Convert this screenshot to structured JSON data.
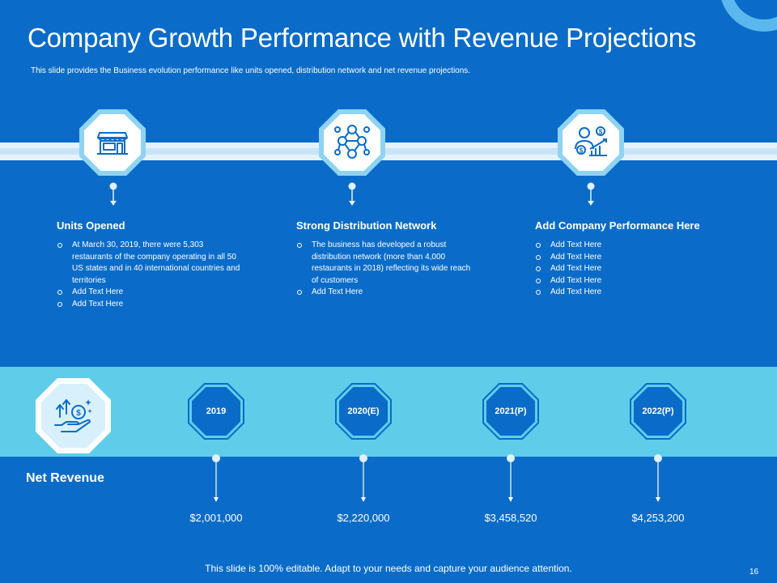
{
  "slide": {
    "title": "Company Growth Performance with Revenue Projections",
    "subtitle": "This slide provides the Business evolution performance like units opened, distribution  network and net revenue projections.",
    "footer": "This slide is 100% editable. Adapt to your needs and capture your audience attention.",
    "page_number": "16"
  },
  "sections": [
    {
      "icon": "storefront-icon",
      "title": "Units Opened",
      "bullets": [
        "At March 30, 2019, there were 5,303 restaurants of the company operating in all 50 US states and in 40 international countries and territories",
        "Add Text Here",
        "Add Text Here"
      ]
    },
    {
      "icon": "network-people-icon",
      "title": "Strong Distribution Network",
      "bullets": [
        "The business has developed a robust distribution  network (more than 4,000 restaurants in 2018) reflecting its wide reach of customers",
        "Add Text Here"
      ]
    },
    {
      "icon": "performance-growth-icon",
      "title": "Add Company Performance Here",
      "bullets": [
        "Add Text Here",
        "Add Text Here",
        "Add Text Here",
        "Add Text Here",
        "Add Text Here"
      ]
    }
  ],
  "net_revenue": {
    "label": "Net Revenue",
    "icon": "hand-money-growth-icon",
    "years": [
      "2019",
      "2020(E)",
      "2021(P)",
      "2022(P)"
    ],
    "amounts": [
      "$2,001,000",
      "$2,220,000",
      "$3,458,520",
      "$4,253,200"
    ]
  },
  "colors": {
    "background": "#0a6cc8",
    "band": "#e6f2fb",
    "revenue_band": "#5fcde9",
    "accent_light": "#8fd3f2"
  }
}
